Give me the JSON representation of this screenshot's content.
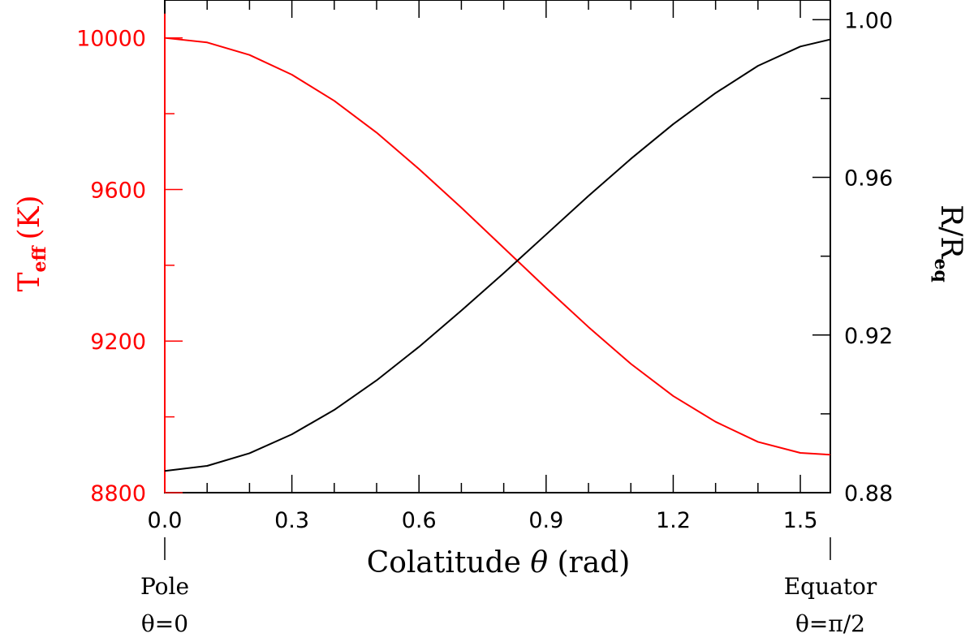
{
  "chart_data": {
    "type": "line",
    "xlabel": {
      "text": "Colatitude",
      "symbol": "θ",
      "unit": "(rad)"
    },
    "ylabel_left": {
      "base": "T",
      "sub": "eff",
      "unit": "(K)"
    },
    "ylabel_right": {
      "base": "R/R",
      "sub": "eq"
    },
    "xlim": [
      0.0,
      1.5708
    ],
    "ylim_left": [
      8800,
      10100
    ],
    "ylim_right": [
      0.88,
      1.005
    ],
    "x_ticks_major": [
      "0.0",
      "0.3",
      "0.6",
      "0.9",
      "1.2",
      "1.5"
    ],
    "y_left_ticks_major": [
      "8800",
      "9200",
      "9600",
      "10000"
    ],
    "y_right_ticks_major": [
      "0.88",
      "0.92",
      "0.96",
      "1.00"
    ],
    "grid": false,
    "legend": "none",
    "annotations": {
      "pole_label": "Pole",
      "pole_theta": "θ=0",
      "equator_label": "Equator",
      "equator_theta": "θ=π/2"
    },
    "series": [
      {
        "axis": "left",
        "color": "#ff0000",
        "x": [
          0.0,
          0.1,
          0.2,
          0.3,
          0.4,
          0.5,
          0.6,
          0.7,
          0.8,
          0.9,
          1.0,
          1.1,
          1.2,
          1.3,
          1.4,
          1.5,
          1.5708
        ],
        "y": [
          10000,
          9988,
          9955,
          9903,
          9834,
          9750,
          9654,
          9552,
          9446,
          9340,
          9237,
          9140,
          9055,
          8987,
          8934,
          8905,
          8900
        ]
      },
      {
        "axis": "right",
        "color": "#000000",
        "x": [
          0.0,
          0.1,
          0.2,
          0.3,
          0.4,
          0.5,
          0.6,
          0.7,
          0.8,
          0.9,
          1.0,
          1.1,
          1.2,
          1.3,
          1.4,
          1.5,
          1.5708
        ],
        "y": [
          0.8855,
          0.8868,
          0.89,
          0.8948,
          0.901,
          0.9085,
          0.917,
          0.9262,
          0.9357,
          0.9455,
          0.9553,
          0.9647,
          0.9735,
          0.9814,
          0.9883,
          0.9932,
          0.995
        ]
      }
    ]
  }
}
